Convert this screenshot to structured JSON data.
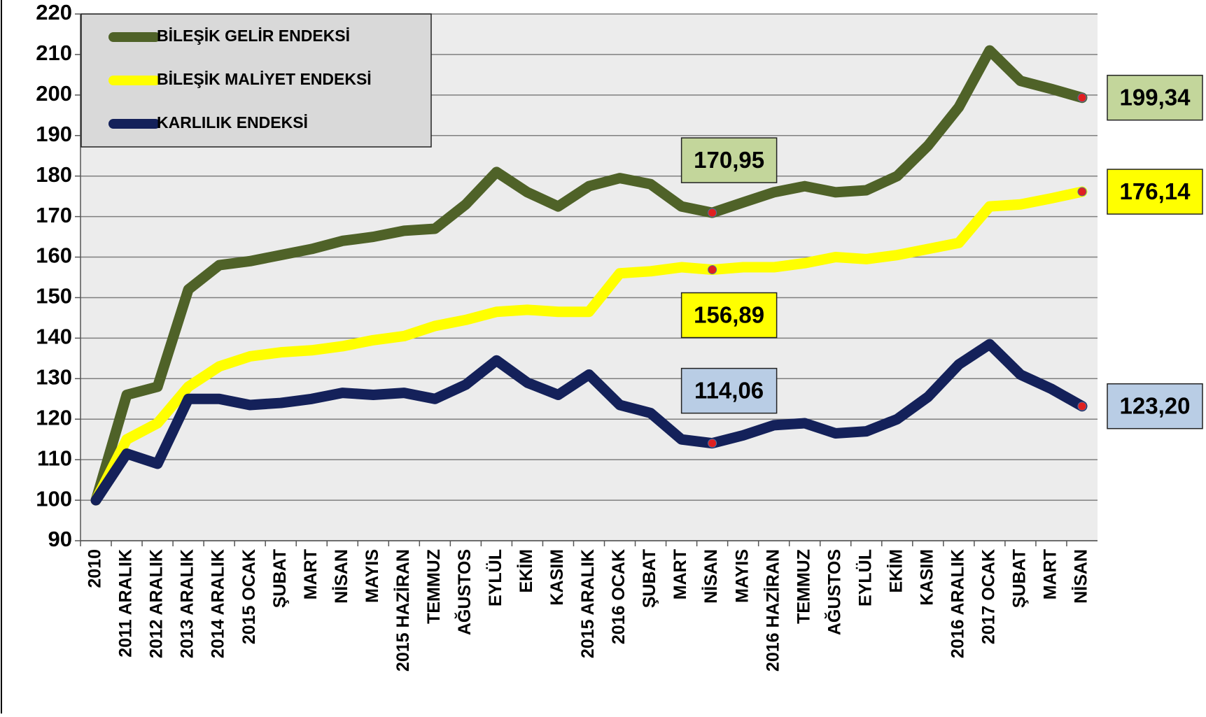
{
  "chart_data": {
    "type": "line",
    "categories": [
      "2010",
      "2011 ARALIK",
      "2012 ARALIK",
      "2013 ARALIK",
      "2014 ARALIK",
      "2015 OCAK",
      "ŞUBAT",
      "MART",
      "NİSAN",
      "MAYIS",
      "2015 HAZİRAN",
      "TEMMUZ",
      "AĞUSTOS",
      "EYLÜL",
      "EKİM",
      "KASIM",
      "2015 ARALIK",
      "2016 OCAK",
      "ŞUBAT",
      "MART",
      "NİSAN",
      "MAYIS",
      "2016 HAZİRAN",
      "TEMMUZ",
      "AĞUSTOS",
      "EYLÜL",
      "EKİM",
      "KASIM",
      "2016 ARALIK",
      "2017 OCAK",
      "ŞUBAT",
      "MART",
      "NİSAN"
    ],
    "series": [
      {
        "name": "BİLEŞİK GELİR ENDEKSİ",
        "color": "#4f6228",
        "label_color": "#c3d69b",
        "values": [
          100,
          126,
          128,
          152,
          158,
          159,
          160.5,
          162,
          164,
          165,
          166.5,
          167,
          173,
          181,
          176,
          172.5,
          177.5,
          179.5,
          178,
          172.5,
          170.95,
          173.5,
          176,
          177.5,
          176,
          176.5,
          180,
          187.5,
          197,
          211,
          203.5,
          201.5,
          199.34
        ],
        "value_labels": [
          null,
          null,
          null,
          null,
          null,
          null,
          null,
          null,
          null,
          null,
          null,
          null,
          null,
          null,
          null,
          null,
          null,
          null,
          null,
          null,
          "170,95",
          null,
          null,
          null,
          null,
          null,
          null,
          null,
          null,
          null,
          null,
          null,
          "199,34"
        ]
      },
      {
        "name": "BİLEŞİK MALİYET ENDEKSİ",
        "color": "#ffff00",
        "label_color": "#ffff00",
        "values": [
          100,
          115,
          119,
          128,
          133,
          135.5,
          136.5,
          137,
          138,
          139.5,
          140.5,
          143,
          144.5,
          146.5,
          147,
          146.5,
          146.5,
          156,
          156.5,
          157.5,
          156.89,
          157.5,
          157.5,
          158.5,
          160,
          159.5,
          160.5,
          162,
          163.5,
          172.5,
          173,
          174.5,
          176.14
        ],
        "value_labels": [
          null,
          null,
          null,
          null,
          null,
          null,
          null,
          null,
          null,
          null,
          null,
          null,
          null,
          null,
          null,
          null,
          null,
          null,
          null,
          null,
          "156,89",
          null,
          null,
          null,
          null,
          null,
          null,
          null,
          null,
          null,
          null,
          null,
          "176,14"
        ]
      },
      {
        "name": "KARLILIK ENDEKSİ",
        "color": "#14215a",
        "label_color": "#b9cde5",
        "values": [
          100,
          111.5,
          109,
          125,
          125,
          123.5,
          124,
          125,
          126.5,
          126,
          126.5,
          125,
          128.5,
          134.5,
          129,
          126,
          131,
          123.5,
          121.5,
          115,
          114.06,
          116,
          118.5,
          119,
          116.5,
          117,
          120,
          125.5,
          133.5,
          138.5,
          131,
          127.5,
          123.2
        ],
        "value_labels": [
          null,
          null,
          null,
          null,
          null,
          null,
          null,
          null,
          null,
          null,
          null,
          null,
          null,
          null,
          null,
          null,
          null,
          null,
          null,
          null,
          "114,06",
          null,
          null,
          null,
          null,
          null,
          null,
          null,
          null,
          null,
          null,
          null,
          "123,20"
        ]
      }
    ],
    "ylim": [
      90,
      220
    ],
    "yticks": [
      90,
      100,
      110,
      120,
      130,
      140,
      150,
      160,
      170,
      180,
      190,
      200,
      210,
      220
    ],
    "grid": true,
    "legend": "upper left"
  }
}
